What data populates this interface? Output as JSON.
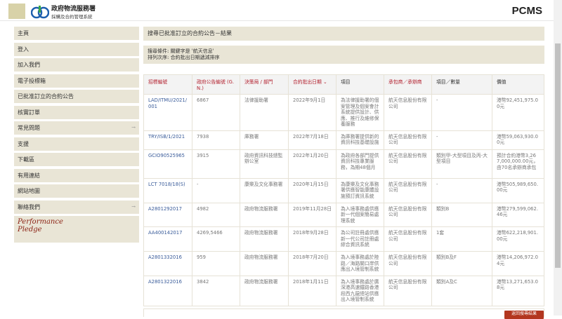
{
  "header": {
    "logo_title": "政府物流服務署",
    "logo_subtitle": "採購及合約管理系統",
    "app_name": "PCMS"
  },
  "sidebar": {
    "items": [
      {
        "label": "主頁",
        "has_arrow": false
      },
      {
        "label": "登入",
        "has_arrow": false
      },
      {
        "label": "加入我們",
        "has_arrow": false
      },
      {
        "label": "電子投標箱",
        "has_arrow": false
      },
      {
        "label": "已批准訂立的合約公告",
        "has_arrow": false
      },
      {
        "label": "核實訂單",
        "has_arrow": false
      },
      {
        "label": "常見問題",
        "has_arrow": true
      },
      {
        "label": "支援",
        "has_arrow": false
      },
      {
        "label": "下載區",
        "has_arrow": false
      },
      {
        "label": "有用連結",
        "has_arrow": false
      },
      {
        "label": "網站地圖",
        "has_arrow": false
      },
      {
        "label": "聯絡我們",
        "has_arrow": true
      }
    ],
    "arrow": "→",
    "pledge_line1": "Performance",
    "pledge_line2": "Pledge"
  },
  "main": {
    "title": "搜尋已批准訂立的合約公告－結果",
    "criteria_line1": "搜尋條件: 關鍵字是 '航天信息'",
    "criteria_line2": "排列次序: 合約批出日期遞減排序",
    "button_label": "返回搜尋結果",
    "table": {
      "headers": [
        "招標編號",
        "政府公告編號 (G.N.)",
        "決策局 / 部門",
        "合約批出日期 ⌄",
        "項目",
        "承包商／承辦商",
        "項目／數量",
        "價值"
      ],
      "rows": [
        [
          "LAD/ITMU/2021/001",
          "6867",
          "法律援助署",
          "2022年9月1日",
          "為法律援助署的個案管理及個案會計系統提供設計、供應、推行及維修保養服務",
          "航天信息股份有限公司",
          "-",
          "港幣92,451,975.00元"
        ],
        [
          "TRY/ISB/1/2021",
          "7938",
          "庫務署",
          "2022年7月18日",
          "為庫務署提供新的資訊科技基礎設施",
          "航天信息股份有限公司",
          "-",
          "港幣59,063,930.00元"
        ],
        [
          "GCIO90525965",
          "3915",
          "政府資訊科技總監辦公室",
          "2022年1月20日",
          "為政府各部門提供資訊科技專業服務，為期48個月",
          "航天信息股份有限公司",
          "類別甲-大型項目及丙-大型項目",
          "預計合約港幣3,267,000,000.00元，由70名承辦商承包"
        ],
        [
          "LCT 7018/18(S)",
          "-",
          "康樂及文化事務署",
          "2020年1月15日",
          "為康樂及文化事務署供應智能康體設施預訂資訊系統",
          "航天信息股份有限公司",
          "-",
          "港幣505,989,650.00元"
        ],
        [
          "A2801292017",
          "4982",
          "政府物流服務署",
          "2019年11月28日",
          "為入境事務處供應新一代個案簡易處理系統",
          "航天信息股份有限公司",
          "類別B",
          "港幣279,599,062.46元"
        ],
        [
          "AA400142017",
          "4269,5466",
          "政府物流服務署",
          "2018年9月28日",
          "為公司註冊處供應新一代公司註冊處綜合資訊系統",
          "航天信息股份有限公司",
          "1套",
          "港幣622,218,901.00元"
        ],
        [
          "A2801332016",
          "959",
          "政府物流服務署",
          "2018年7月20日",
          "為入境事務處於陸路／海路關口岸供應出入境管制系統",
          "航天信息股份有限公司",
          "類別B及F",
          "港幣14,206,972.04元"
        ],
        [
          "A2801322016",
          "3842",
          "政府物流服務署",
          "2018年1月11日",
          "為入境事務處於廣深港高速鐵路香港段西九龍總站供應出入境管制系統",
          "航天信息股份有限公司",
          "類別A及C",
          "港幣13,271,653.08元"
        ]
      ]
    }
  },
  "colors": {
    "accent": "#b21f2d",
    "panel": "#e9e5d6",
    "link": "#3a5c9a",
    "button": "#b3361f"
  }
}
